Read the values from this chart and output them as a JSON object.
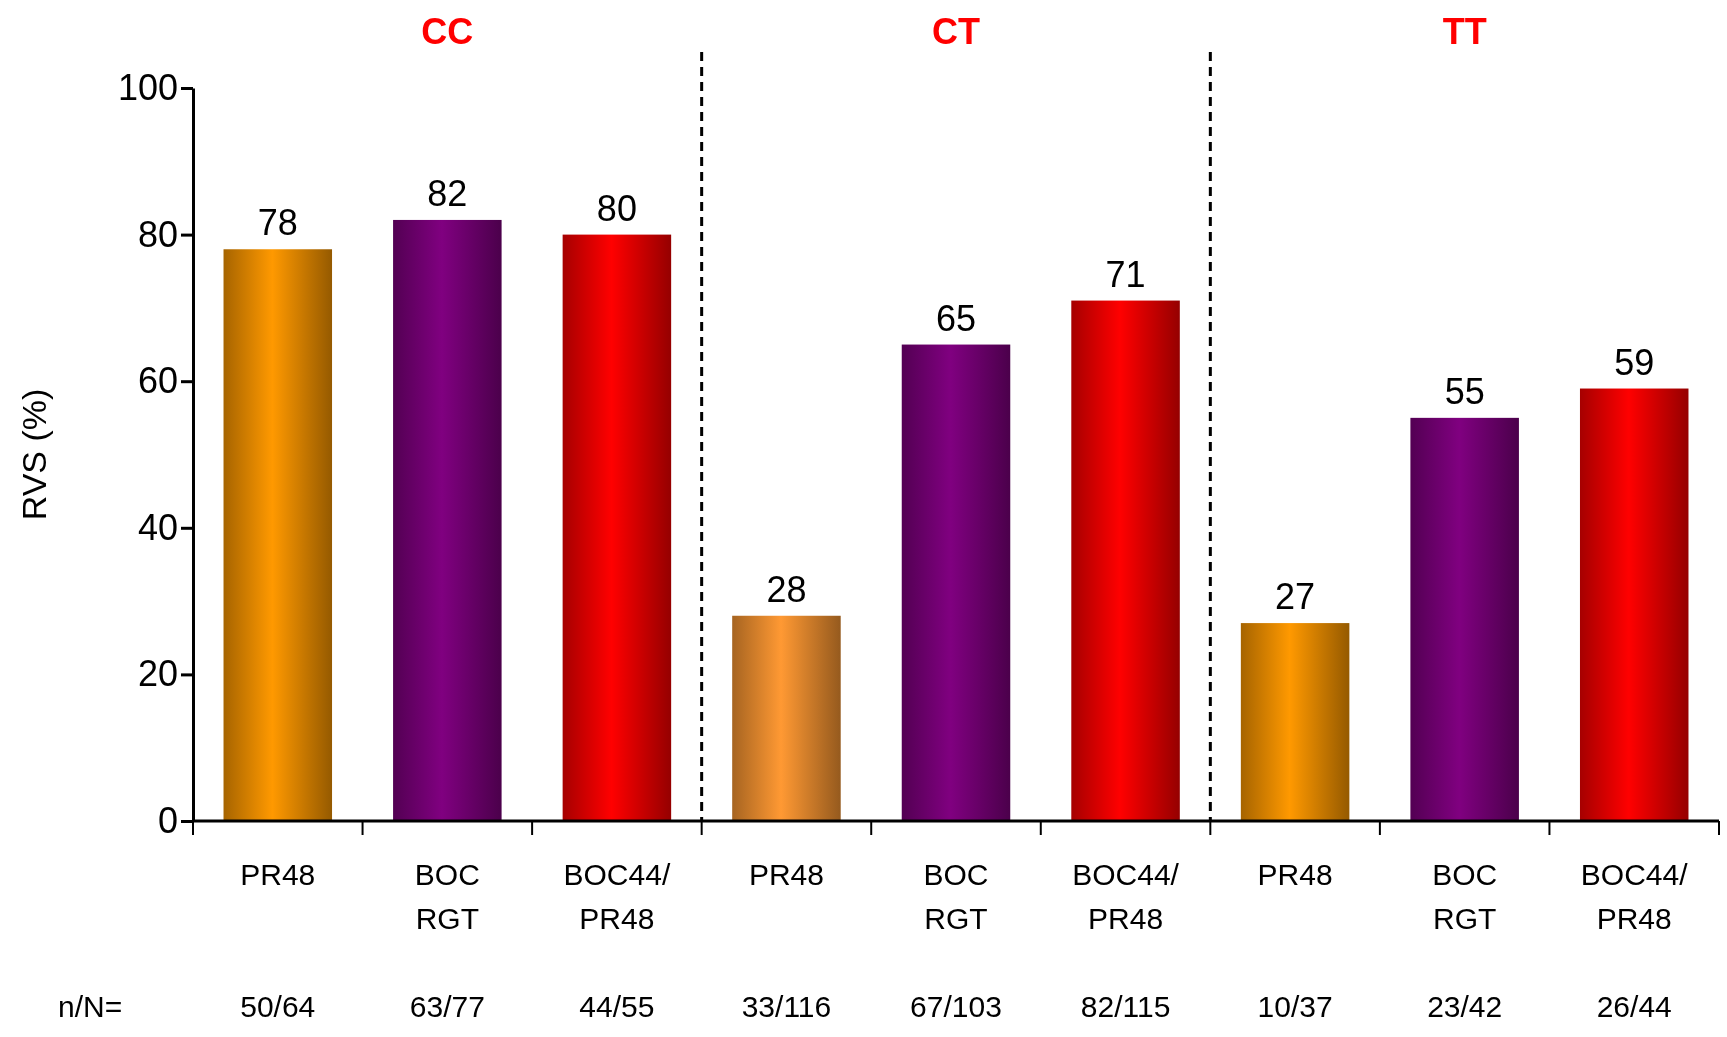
{
  "chart_data": {
    "type": "bar",
    "ylabel": "RVS (%)",
    "categories": [
      "PR48",
      "BOC\nRGT",
      "BOC44/\nPR48",
      "PR48",
      "BOC\nRGT",
      "BOC44/\nPR48",
      "PR48",
      "BOC\nRGT",
      "BOC44/\nPR48"
    ],
    "values": [
      78,
      82,
      80,
      28,
      65,
      71,
      27,
      55,
      59
    ],
    "colors": [
      "#ff9900",
      "#800080",
      "#ff0000",
      "#ff9933",
      "#800080",
      "#ff0000",
      "#ff9900",
      "#800080",
      "#ff0000"
    ],
    "ylim": [
      0,
      100
    ],
    "yticks": [
      0,
      20,
      40,
      60,
      80,
      100
    ],
    "data_labels": true,
    "annotations": [
      "CC",
      "CT",
      "TT",
      "n/N=",
      "50/64",
      "63/77",
      "44/55",
      "33/116",
      "67/103",
      "82/115",
      "10/37",
      "23/42",
      "26/44"
    ]
  }
}
